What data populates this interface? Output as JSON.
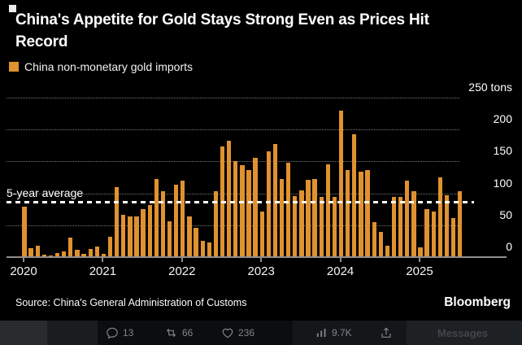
{
  "card": {
    "title": "China's Appetite for Gold Stays Strong Even as Prices Hit Record",
    "legend": {
      "label": "China non-monetary gold imports",
      "color": "#E09230"
    },
    "source": "Source: China's General Administration of Customs",
    "brand": "Bloomberg"
  },
  "chart_data": {
    "type": "bar",
    "title": "China's Appetite for Gold Stays Strong Even as Prices Hit Record",
    "series_name": "China non-monetary gold imports",
    "unit": "tons",
    "period": "Jan 2020 - Jul 2025, monthly",
    "years": [
      {
        "year": "2020",
        "values": [
          79,
          14,
          18,
          4,
          2,
          6,
          9,
          31,
          12,
          5,
          13,
          16
        ]
      },
      {
        "year": "2021",
        "values": [
          5,
          32,
          110,
          66,
          64,
          64,
          75,
          81,
          122,
          103,
          56,
          113
        ]
      },
      {
        "year": "2022",
        "values": [
          120,
          64,
          46,
          25,
          23,
          103,
          173,
          182,
          150,
          144,
          137,
          156
        ]
      },
      {
        "year": "2023",
        "values": [
          72,
          166,
          177,
          123,
          148,
          96,
          105,
          121,
          122,
          95,
          145,
          94
        ]
      },
      {
        "year": "2024",
        "values": [
          230,
          137,
          193,
          134,
          137,
          55,
          40,
          18,
          95,
          94,
          120,
          103
        ]
      },
      {
        "year": "2025",
        "values": [
          15,
          75,
          72,
          125,
          97,
          61,
          103
        ]
      }
    ],
    "x_tick_labels": [
      "2020",
      "2021",
      "2022",
      "2023",
      "2024",
      "2025"
    ],
    "y_ticks": [
      0,
      50,
      100,
      150,
      200,
      250
    ],
    "y_tick_labels": [
      "0",
      "50",
      "100",
      "150",
      "200",
      "250 tons"
    ],
    "ylim": [
      0,
      250
    ],
    "grid": "dotted horizontal, labels right",
    "legend_position": "top-left",
    "bar_color": "#E09230",
    "five_year_average": 86,
    "average_label": "5-year average"
  },
  "social_bar": {
    "reply_count": "13",
    "repost_count": "66",
    "like_count": "236",
    "view_count": "9.7K",
    "messages_label": "Messages"
  }
}
